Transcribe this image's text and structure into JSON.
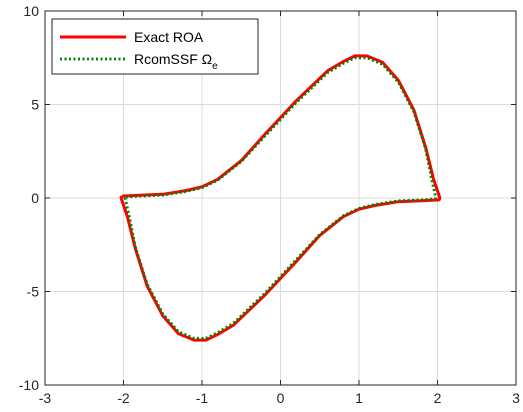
{
  "chart_data": {
    "type": "line",
    "title": "",
    "xlabel": "",
    "ylabel": "",
    "xlim": [
      -3,
      3
    ],
    "ylim": [
      -10,
      10
    ],
    "x_ticks": [
      -3,
      -2,
      -1,
      0,
      1,
      2,
      3
    ],
    "y_ticks": [
      -10,
      -5,
      0,
      5,
      10
    ],
    "x_tick_labels": [
      "-3",
      "-2",
      "-1",
      "0",
      "1",
      "2",
      "3"
    ],
    "y_tick_labels": [
      "-10",
      "-5",
      "0",
      "5",
      "10"
    ],
    "grid": true,
    "legend_position": "top-left",
    "series": [
      {
        "name": "Exact ROA",
        "color": "#ff0000",
        "style": "solid",
        "points": [
          [
            -2.02,
            0.1
          ],
          [
            -1.8,
            0.15
          ],
          [
            -1.5,
            0.2
          ],
          [
            -1.2,
            0.4
          ],
          [
            -1.0,
            0.6
          ],
          [
            -0.8,
            1.0
          ],
          [
            -0.5,
            2.0
          ],
          [
            -0.2,
            3.4
          ],
          [
            0.0,
            4.3
          ],
          [
            0.2,
            5.2
          ],
          [
            0.4,
            6.0
          ],
          [
            0.6,
            6.8
          ],
          [
            0.8,
            7.3
          ],
          [
            0.95,
            7.6
          ],
          [
            1.1,
            7.6
          ],
          [
            1.3,
            7.25
          ],
          [
            1.5,
            6.3
          ],
          [
            1.7,
            4.7
          ],
          [
            1.85,
            2.7
          ],
          [
            1.95,
            1.0
          ],
          [
            2.03,
            0.0
          ],
          [
            2.02,
            -0.1
          ],
          [
            1.8,
            -0.15
          ],
          [
            1.5,
            -0.2
          ],
          [
            1.2,
            -0.4
          ],
          [
            1.0,
            -0.6
          ],
          [
            0.8,
            -1.0
          ],
          [
            0.5,
            -2.0
          ],
          [
            0.2,
            -3.4
          ],
          [
            0.0,
            -4.3
          ],
          [
            -0.2,
            -5.2
          ],
          [
            -0.4,
            -6.0
          ],
          [
            -0.6,
            -6.8
          ],
          [
            -0.8,
            -7.3
          ],
          [
            -0.95,
            -7.6
          ],
          [
            -1.1,
            -7.6
          ],
          [
            -1.3,
            -7.25
          ],
          [
            -1.5,
            -6.3
          ],
          [
            -1.7,
            -4.7
          ],
          [
            -1.85,
            -2.7
          ],
          [
            -1.95,
            -1.0
          ],
          [
            -2.03,
            0.0
          ],
          [
            -2.02,
            0.1
          ]
        ]
      },
      {
        "name": "RcomSSF Ω_e",
        "color": "#008000",
        "style": "dotted",
        "points": [
          [
            -1.97,
            0.05
          ],
          [
            -1.8,
            0.1
          ],
          [
            -1.5,
            0.15
          ],
          [
            -1.2,
            0.35
          ],
          [
            -1.0,
            0.55
          ],
          [
            -0.8,
            0.95
          ],
          [
            -0.5,
            1.95
          ],
          [
            -0.2,
            3.3
          ],
          [
            0.0,
            4.2
          ],
          [
            0.2,
            5.1
          ],
          [
            0.4,
            5.9
          ],
          [
            0.6,
            6.7
          ],
          [
            0.8,
            7.2
          ],
          [
            0.95,
            7.5
          ],
          [
            1.1,
            7.5
          ],
          [
            1.3,
            7.15
          ],
          [
            1.5,
            6.2
          ],
          [
            1.7,
            4.6
          ],
          [
            1.85,
            2.6
          ],
          [
            1.93,
            0.9
          ],
          [
            1.98,
            0.0
          ],
          [
            1.97,
            -0.05
          ],
          [
            1.8,
            -0.1
          ],
          [
            1.5,
            -0.15
          ],
          [
            1.2,
            -0.35
          ],
          [
            1.0,
            -0.55
          ],
          [
            0.8,
            -0.95
          ],
          [
            0.5,
            -1.95
          ],
          [
            0.2,
            -3.3
          ],
          [
            0.0,
            -4.2
          ],
          [
            -0.2,
            -5.1
          ],
          [
            -0.4,
            -5.9
          ],
          [
            -0.6,
            -6.7
          ],
          [
            -0.8,
            -7.2
          ],
          [
            -0.95,
            -7.5
          ],
          [
            -1.1,
            -7.5
          ],
          [
            -1.3,
            -7.15
          ],
          [
            -1.5,
            -6.2
          ],
          [
            -1.7,
            -4.6
          ],
          [
            -1.85,
            -2.6
          ],
          [
            -1.93,
            -0.9
          ],
          [
            -1.98,
            0.0
          ],
          [
            -1.97,
            0.05
          ]
        ]
      }
    ],
    "legend": {
      "entries": [
        {
          "label": "Exact ROA",
          "subscript": ""
        },
        {
          "label": "RcomSSF Ω",
          "subscript": "e"
        }
      ]
    }
  }
}
